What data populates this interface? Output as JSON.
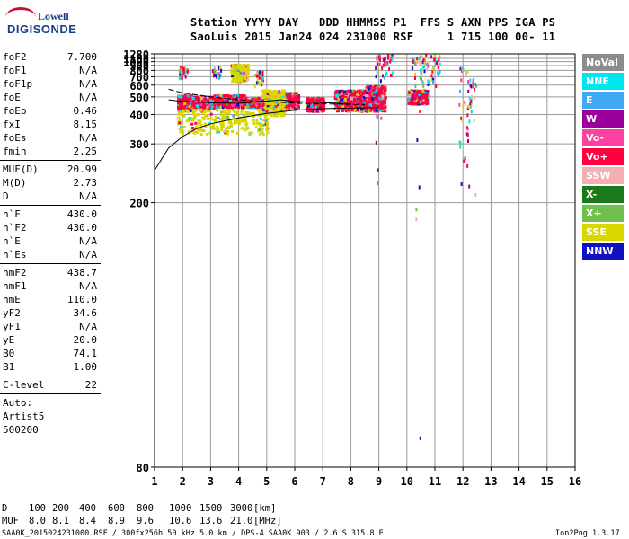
{
  "logo": {
    "line1": "Lowell",
    "line2": "DIGISONDE"
  },
  "header": {
    "line1": "Station YYYY DAY   DDD HHMMSS P1  FFS S AXN PPS IGA PS",
    "line2": "SaoLuis 2015 Jan24 024 231000 RSF     1 715 100 00- 11"
  },
  "params1": [
    {
      "label": "foF2",
      "value": "7.700"
    },
    {
      "label": "foF1",
      "value": "N/A"
    },
    {
      "label": "foF1p",
      "value": "N/A"
    },
    {
      "label": "foE",
      "value": "N/A"
    },
    {
      "label": "foEp",
      "value": "0.46"
    },
    {
      "label": "fxI",
      "value": "8.15"
    },
    {
      "label": "foEs",
      "value": "N/A"
    },
    {
      "label": "fmin",
      "value": "2.25"
    }
  ],
  "params2": [
    {
      "label": "MUF(D)",
      "value": "20.99"
    },
    {
      "label": "M(D)",
      "value": "2.73"
    },
    {
      "label": "D",
      "value": "N/A"
    }
  ],
  "params3": [
    {
      "label": "h`F",
      "value": "430.0"
    },
    {
      "label": "h`F2",
      "value": "430.0"
    },
    {
      "label": "h`E",
      "value": "N/A"
    },
    {
      "label": "h`Es",
      "value": "N/A"
    }
  ],
  "params4": [
    {
      "label": "hmF2",
      "value": "438.7"
    },
    {
      "label": "hmF1",
      "value": "N/A"
    },
    {
      "label": "hmE",
      "value": "110.0"
    },
    {
      "label": "yF2",
      "value": "34.6"
    },
    {
      "label": "yF1",
      "value": "N/A"
    },
    {
      "label": "yE",
      "value": "20.0"
    },
    {
      "label": "B0",
      "value": "74.1"
    },
    {
      "label": "B1",
      "value": "1.00"
    }
  ],
  "params5": [
    {
      "label": "C-level",
      "value": "22"
    }
  ],
  "auto": {
    "line1": "Auto:",
    "line2": "Artist5",
    "line3": "500200"
  },
  "legend": [
    {
      "label": "NoVal",
      "color": "#8c8c8c"
    },
    {
      "label": "NNE",
      "color": "#00e5ee"
    },
    {
      "label": "E",
      "color": "#3fa9f5"
    },
    {
      "label": "W",
      "color": "#9b009b"
    },
    {
      "label": "Vo-",
      "color": "#ff40a0"
    },
    {
      "label": "Vo+",
      "color": "#ff0040"
    },
    {
      "label": "SSW",
      "color": "#f4b0b0"
    },
    {
      "label": "X-",
      "color": "#1a7a1a"
    },
    {
      "label": "X+",
      "color": "#6fbf4f"
    },
    {
      "label": "SSE",
      "color": "#d8d800"
    },
    {
      "label": "NNW",
      "color": "#1010c0"
    }
  ],
  "chart_data": {
    "type": "scatter",
    "title": "",
    "xlabel": "",
    "ylabel": "",
    "xlim": [
      1,
      16
    ],
    "x_ticks": [
      1,
      2,
      3,
      4,
      5,
      6,
      7,
      8,
      9,
      10,
      11,
      12,
      13,
      14,
      15,
      16
    ],
    "ylim": [
      80,
      1280
    ],
    "y_scale": "reciprocal",
    "y_ticks": [
      80,
      200,
      300,
      400,
      500,
      600,
      700,
      800,
      900,
      1000,
      1100,
      1280
    ],
    "grid": true,
    "clusters": [
      {
        "x_range": [
          1.8,
          2.3
        ],
        "y_range": [
          420,
          520
        ],
        "class": "Vo+"
      },
      {
        "x_range": [
          2.3,
          3.1
        ],
        "y_range": [
          430,
          510
        ],
        "class": "Vo+"
      },
      {
        "x_range": [
          3.1,
          4.2
        ],
        "y_range": [
          440,
          520
        ],
        "class": "Vo+"
      },
      {
        "x_range": [
          4.2,
          5.0
        ],
        "y_range": [
          440,
          500
        ],
        "class": "Vo+"
      },
      {
        "x_range": [
          5.5,
          6.1
        ],
        "y_range": [
          430,
          540
        ],
        "class": "Vo+"
      },
      {
        "x_range": [
          6.4,
          7.0
        ],
        "y_range": [
          420,
          500
        ],
        "class": "Vo+"
      },
      {
        "x_range": [
          7.4,
          8.5
        ],
        "y_range": [
          420,
          560
        ],
        "class": "Vo+"
      },
      {
        "x_range": [
          8.5,
          9.2
        ],
        "y_range": [
          420,
          600
        ],
        "class": "Vo+"
      },
      {
        "x_range": [
          10.0,
          10.7
        ],
        "y_range": [
          460,
          560
        ],
        "class": "Vo+"
      },
      {
        "x_range": [
          1.8,
          5.0
        ],
        "y_range": [
          330,
          430
        ],
        "class": "SSE"
      },
      {
        "x_range": [
          4.8,
          5.6
        ],
        "y_range": [
          400,
          560
        ],
        "class": "SSE"
      },
      {
        "x_range": [
          3.7,
          4.3
        ],
        "y_range": [
          650,
          950
        ],
        "class": "SSE"
      }
    ],
    "curves": [
      {
        "name": "",
        "points": [
          [
            1,
            245
          ],
          [
            1.5,
            290
          ],
          [
            2,
            320
          ],
          [
            2.5,
            345
          ],
          [
            3,
            362
          ],
          [
            4,
            385
          ],
          [
            5,
            405
          ],
          [
            6,
            420
          ],
          [
            7,
            428
          ],
          [
            8,
            432
          ],
          [
            9,
            434
          ]
        ]
      },
      {
        "name": "",
        "points": [
          [
            1.5,
            560
          ],
          [
            2,
            530
          ],
          [
            3,
            500
          ],
          [
            4,
            480
          ],
          [
            5,
            468
          ],
          [
            6,
            460
          ],
          [
            7,
            455
          ],
          [
            8,
            452
          ],
          [
            8.5,
            450
          ]
        ]
      },
      {
        "name": "",
        "points": [
          [
            1.5,
            480
          ],
          [
            2,
            470
          ],
          [
            3,
            462
          ],
          [
            4,
            458
          ],
          [
            5,
            472
          ],
          [
            5.5,
            480
          ],
          [
            6,
            470
          ],
          [
            7,
            462
          ],
          [
            8,
            456
          ]
        ]
      }
    ]
  },
  "footer": {
    "d_label": "D",
    "d_values": [
      "100",
      "200",
      "400",
      "600",
      "800",
      "1000",
      "1500",
      "3000"
    ],
    "d_unit": "[km]",
    "muf_label": "MUF",
    "muf_values": [
      "8.0",
      "8.1",
      "8.4",
      "8.9",
      "9.6",
      "10.6",
      "13.6",
      "21.0"
    ],
    "muf_unit": "[MHz]",
    "bottom_left": "SAA0K_2015024231000.RSF / 300fx256h 50 kHz 5.0 km / DPS-4 SAA0K 903 / 2.6 S 315.8 E",
    "bottom_right": "Ion2Png 1.3.17"
  }
}
